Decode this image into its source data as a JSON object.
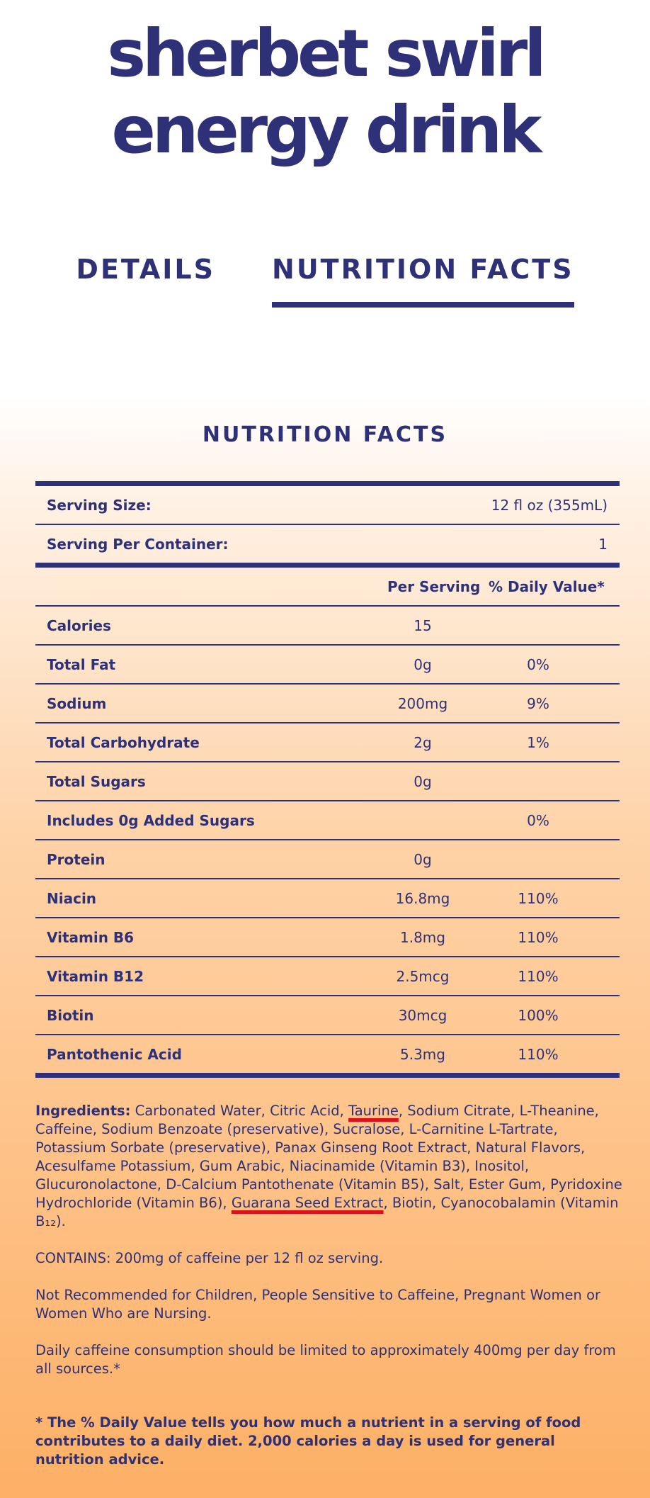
{
  "header": {
    "title_lines": [
      "sherbet swirl",
      "energy drink"
    ]
  },
  "tabs": [
    {
      "label": "DETAILS",
      "active": false
    },
    {
      "label": "NUTRITION FACTS",
      "active": true
    }
  ],
  "nutrition": {
    "heading": "NUTRITION FACTS",
    "serving": [
      [
        "Serving Size:",
        "12 fl oz (355mL)"
      ],
      [
        "Serving Per Container:",
        "1"
      ]
    ],
    "columns": [
      "Per Serving",
      "% Daily Value*"
    ],
    "rows": [
      [
        "Calories",
        "15",
        null
      ],
      [
        "Total Fat",
        "0g",
        "0%"
      ],
      [
        "Sodium",
        "200mg",
        "9%"
      ],
      [
        "Total Carbohydrate",
        "2g",
        "1%"
      ],
      [
        "Total Sugars",
        "0g",
        null
      ],
      [
        "Includes 0g Added Sugars",
        null,
        "0%"
      ],
      [
        "Protein",
        "0g",
        null
      ],
      [
        "Niacin",
        "16.8mg",
        "110%"
      ],
      [
        "Vitamin B6",
        "1.8mg",
        "110%"
      ],
      [
        "Vitamin B12",
        "2.5mcg",
        "110%"
      ],
      [
        "Biotin",
        "30mcg",
        "100%"
      ],
      [
        "Pantothenic Acid",
        "5.3mg",
        "110%"
      ]
    ]
  },
  "ingredients": {
    "label": "Ingredients:",
    "parts": [
      {
        "text": " Carbonated Water, Citric Acid, ",
        "underline": false
      },
      {
        "text": "Taurine",
        "underline": true
      },
      {
        "text": ", Sodium Citrate, L-Theanine, Caffeine, Sodium Benzoate (preservative), Sucralose, L-Carnitine L-Tartrate, Potassium Sorbate (preservative), Panax Ginseng Root Extract, Natural Flavors, Acesulfame Potassium, Gum Arabic, Niacinamide (Vitamin B3), Inositol, Glucuronolactone, D-Calcium Pantothenate (Vitamin B5), Salt, Ester Gum, Pyridoxine Hydrochloride (Vitamin B6), ",
        "underline": false
      },
      {
        "text": "Guarana Seed Extract",
        "underline": true
      },
      {
        "text": ", Biotin, Cyanocobalamin (Vitamin B₁₂).",
        "underline": false
      }
    ]
  },
  "notes": [
    "CONTAINS: 200mg of caffeine per 12 fl oz serving.",
    "Not Recommended for Children, People Sensitive to Caffeine, Pregnant Women or Women Who are Nursing.",
    "Daily caffeine consumption should be limited to approximately 400mg per day from all sources.*"
  ],
  "footnote": "* The % Daily Value tells you how much a nutrient in a serving of food contributes to a daily diet. 2,000 calories a day is used for general nutrition advice."
}
